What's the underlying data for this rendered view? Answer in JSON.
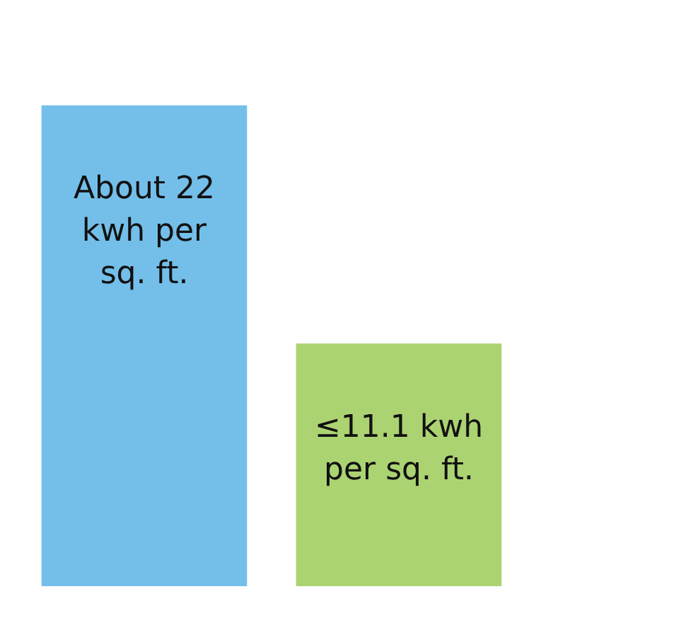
{
  "chart_data": {
    "type": "bar",
    "categories": [
      null,
      null
    ],
    "values": [
      22,
      11.1
    ],
    "colors": [
      "#74bfea",
      "#acd372"
    ],
    "value_labels": [
      "About 22 kwh per sq. ft.",
      "≤11.1 kwh per sq. ft."
    ],
    "tick_labels": false
  }
}
